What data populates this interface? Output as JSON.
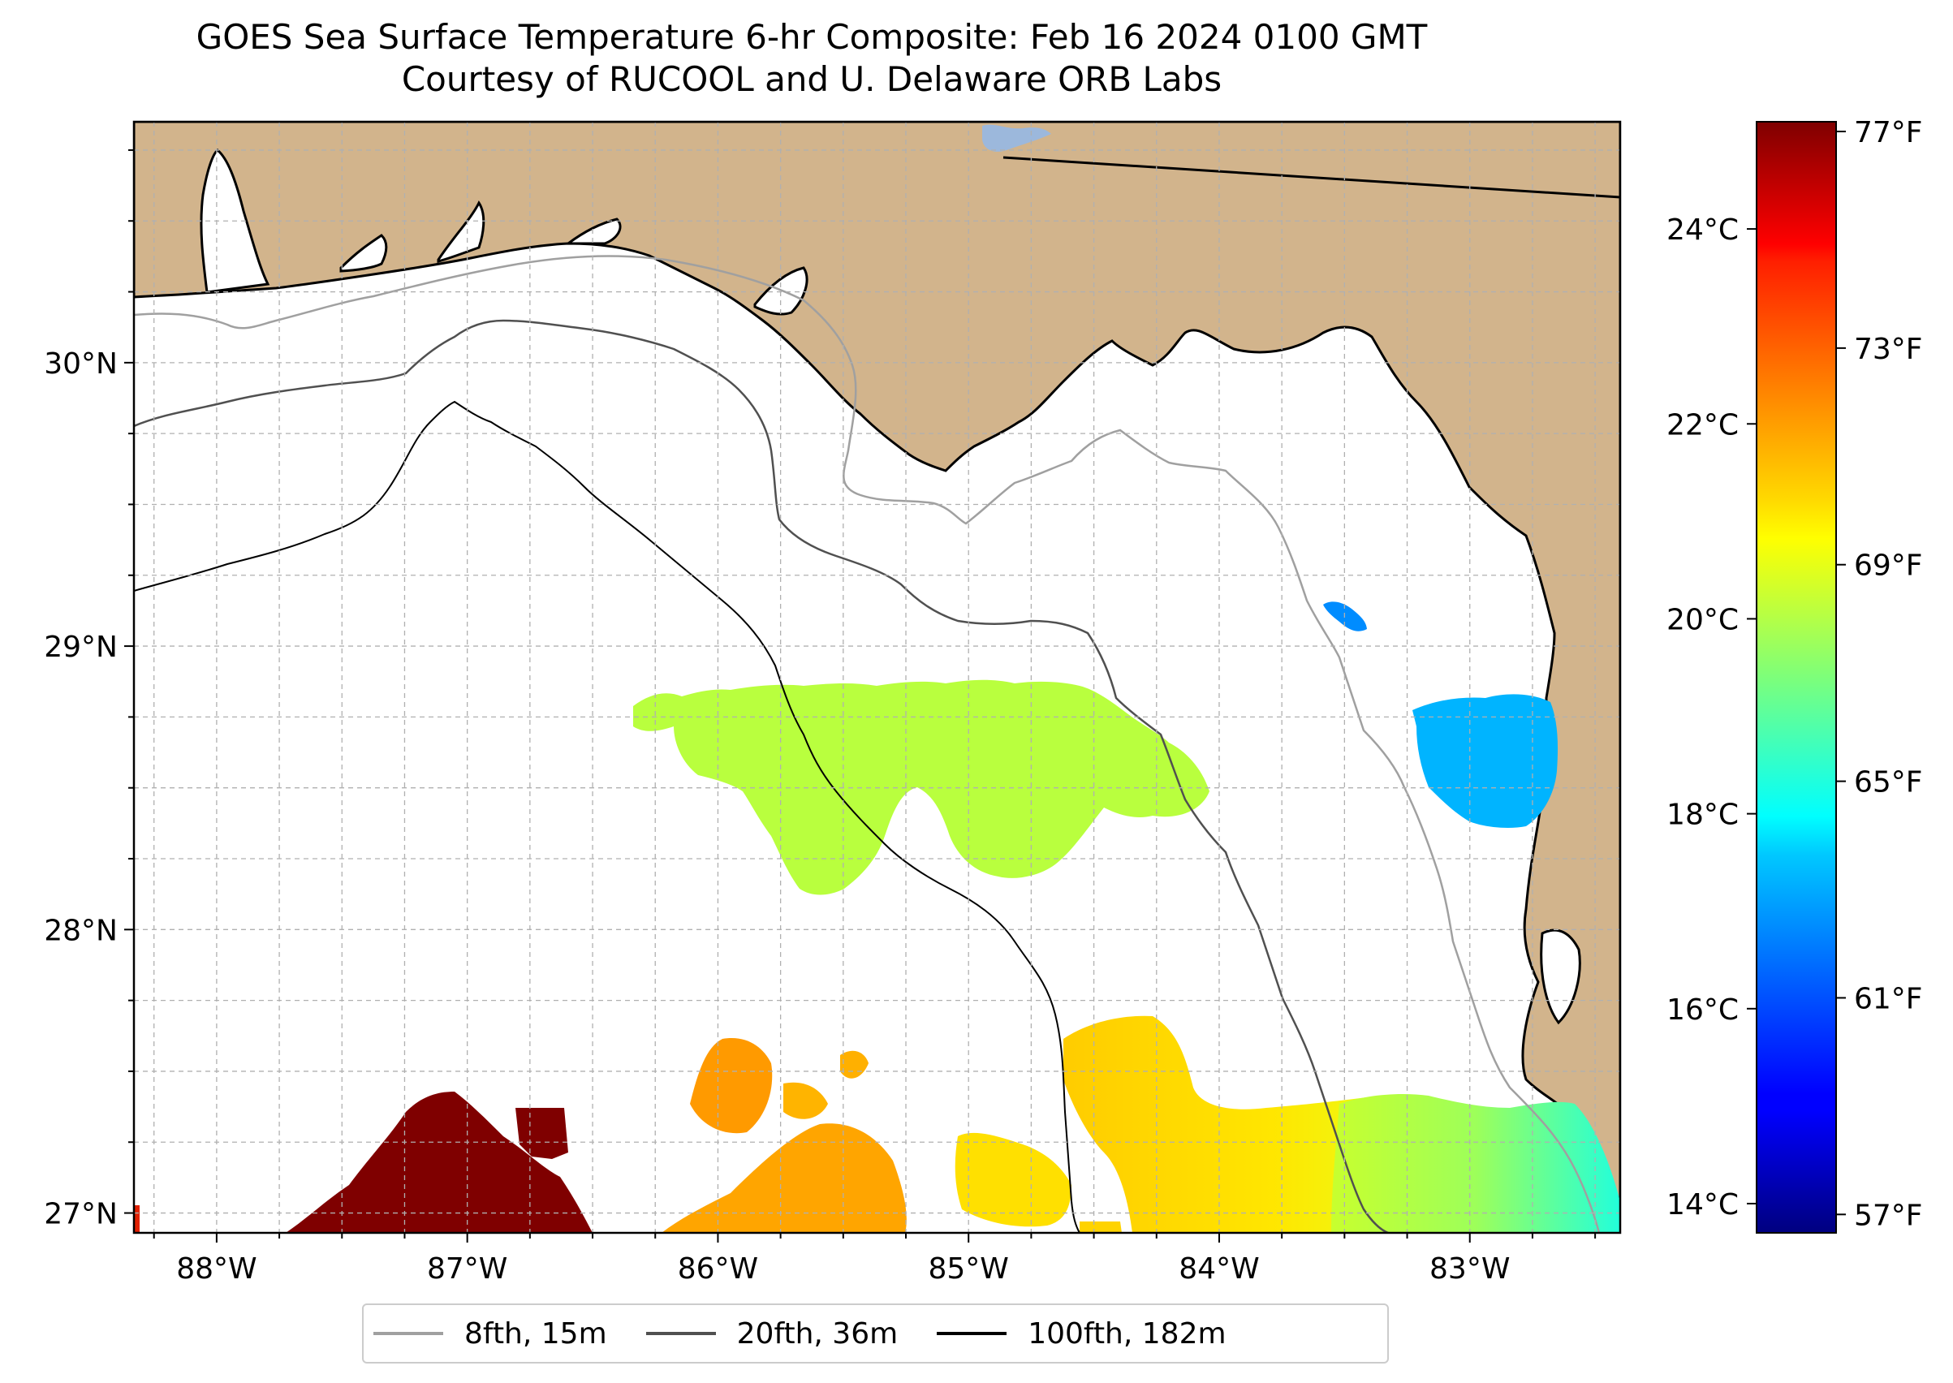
{
  "title": {
    "line1": "GOES Sea Surface Temperature 6-hr Composite: Feb 16 2024 0100 GMT",
    "line2": "Courtesy of RUCOOL and U. Delaware ORB Labs"
  },
  "map": {
    "extent": {
      "lon_min": -88.33,
      "lon_max": -82.4,
      "lat_min": 26.93,
      "lat_max": 30.85
    },
    "lon_ticks": [
      {
        "value": -88,
        "label": "88°W"
      },
      {
        "value": -87,
        "label": "87°W"
      },
      {
        "value": -86,
        "label": "86°W"
      },
      {
        "value": -85,
        "label": "85°W"
      },
      {
        "value": -84,
        "label": "84°W"
      },
      {
        "value": -83,
        "label": "83°W"
      }
    ],
    "lat_ticks": [
      {
        "value": 27,
        "label": "27°N"
      },
      {
        "value": 28,
        "label": "28°N"
      },
      {
        "value": 29,
        "label": "29°N"
      },
      {
        "value": 30,
        "label": "30°N"
      }
    ],
    "colors": {
      "land": "#d2b48c",
      "ocean": "#ffffff",
      "coastline": "#000000",
      "gridline": "#b0b0b0",
      "lake": "#9cb8dc"
    }
  },
  "colorbar": {
    "colormap": "jet",
    "celsius_range": [
      13.7,
      25.1
    ],
    "celsius_ticks": [
      {
        "value": 14,
        "label": "14°C"
      },
      {
        "value": 16,
        "label": "16°C"
      },
      {
        "value": 18,
        "label": "18°C"
      },
      {
        "value": 20,
        "label": "20°C"
      },
      {
        "value": 22,
        "label": "22°C"
      },
      {
        "value": 24,
        "label": "24°C"
      }
    ],
    "fahrenheit_ticks": [
      {
        "value": 57,
        "label": "57°F"
      },
      {
        "value": 61,
        "label": "61°F"
      },
      {
        "value": 65,
        "label": "65°F"
      },
      {
        "value": 69,
        "label": "69°F"
      },
      {
        "value": 73,
        "label": "73°F"
      },
      {
        "value": 77,
        "label": "77°F"
      }
    ]
  },
  "legend": {
    "entries": [
      {
        "label": "8fth, 15m",
        "color": "#a0a0a0"
      },
      {
        "label": "20fth, 36m",
        "color": "#505050"
      },
      {
        "label": "100fth, 182m",
        "color": "#000000"
      }
    ]
  }
}
